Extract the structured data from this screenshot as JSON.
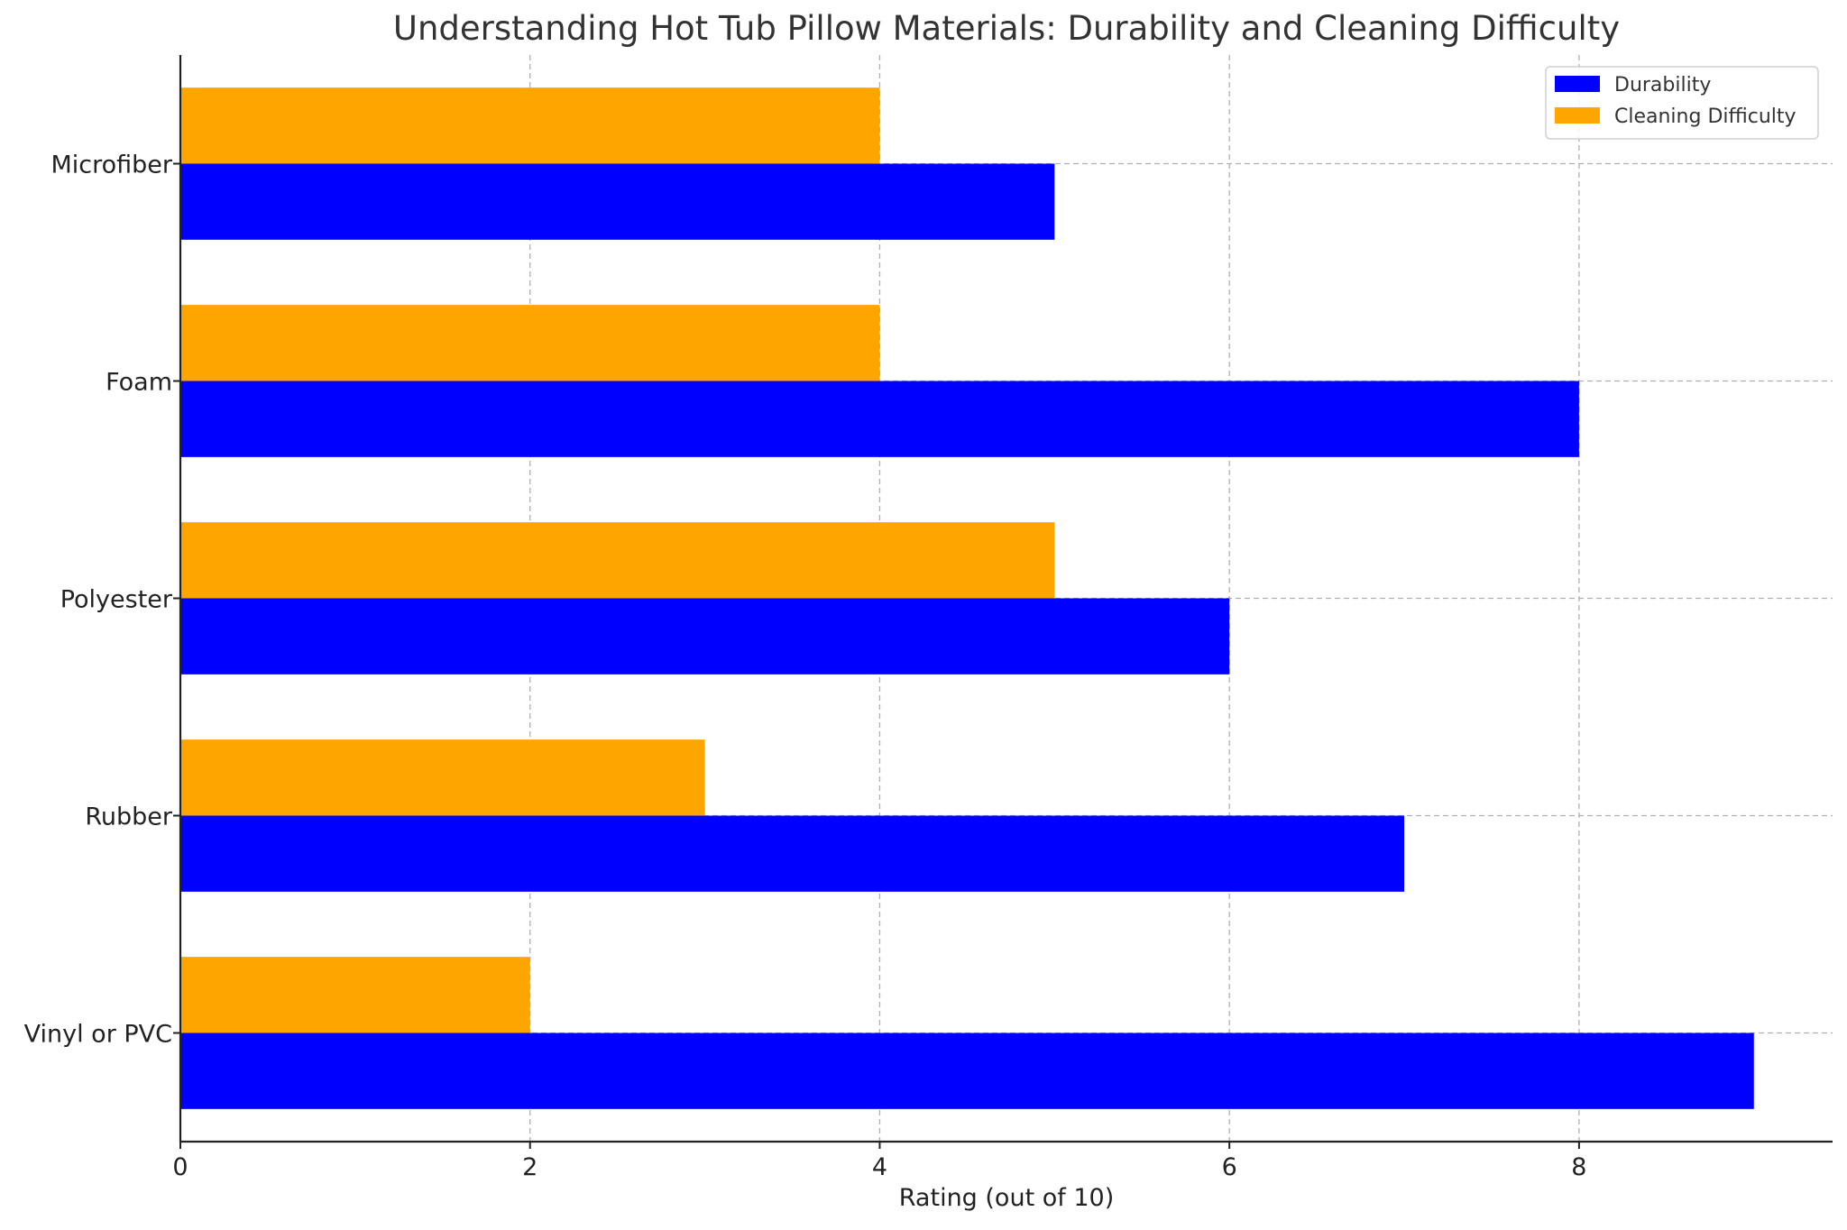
{
  "chart_data": {
    "type": "bar",
    "orientation": "horizontal",
    "title": "Understanding Hot Tub Pillow Materials: Durability and Cleaning Difficulty",
    "xlabel": "Rating (out of 10)",
    "ylabel": "",
    "categories": [
      "Vinyl or PVC",
      "Rubber",
      "Polyester",
      "Foam",
      "Microfiber"
    ],
    "series": [
      {
        "name": "Durability",
        "color": "#0000ff",
        "values": [
          9,
          7,
          6,
          8,
          5
        ]
      },
      {
        "name": "Cleaning Difficulty",
        "color": "#ffa500",
        "values": [
          2,
          3,
          5,
          4,
          4
        ]
      }
    ],
    "xlim": [
      0,
      9.45
    ],
    "xticks": [
      0,
      2,
      4,
      6,
      8
    ],
    "grid": true,
    "legend_position": "top-right"
  }
}
